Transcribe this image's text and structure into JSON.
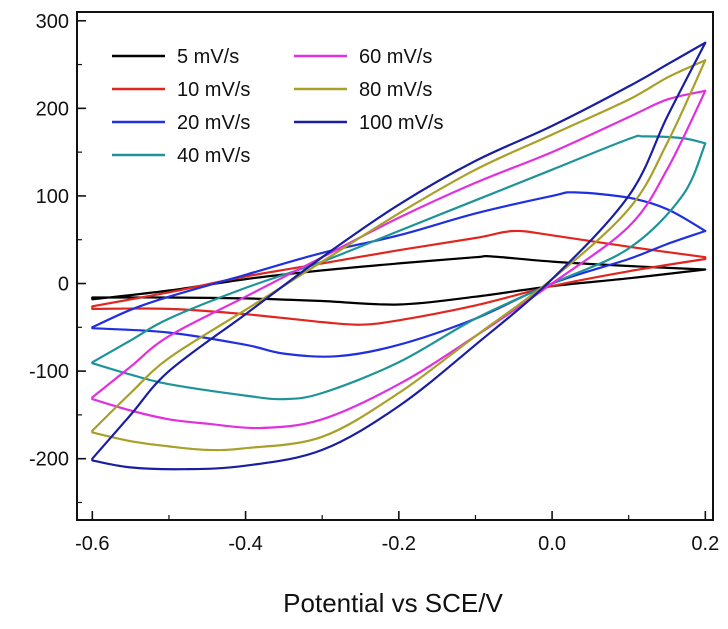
{
  "chart_data": {
    "type": "line",
    "xlabel": "Potential vs SCE/V",
    "ylabel": "",
    "xlim": [
      -0.62,
      0.21
    ],
    "ylim": [
      -270,
      310
    ],
    "x_ticks": [
      -0.6,
      -0.4,
      -0.2,
      0.0,
      0.2
    ],
    "x_tick_labels": [
      "-0.6",
      "-0.4",
      "-0.2",
      "0.0",
      "0.2"
    ],
    "y_ticks": [
      -200,
      -100,
      0,
      100,
      200,
      300
    ],
    "y_tick_labels": [
      "-200",
      "-100",
      "0",
      "100",
      "200",
      "300"
    ],
    "grid": false,
    "legend_position": "top-left",
    "series": [
      {
        "name": "5 mV/s",
        "color": "#000000",
        "forward": [
          [
            -0.6,
            -18
          ],
          [
            -0.5,
            -8
          ],
          [
            -0.4,
            5
          ],
          [
            -0.3,
            15
          ],
          [
            -0.2,
            23
          ],
          [
            -0.1,
            30
          ],
          [
            -0.08,
            31
          ],
          [
            0.0,
            25
          ],
          [
            0.1,
            20
          ],
          [
            0.2,
            16
          ]
        ],
        "reverse": [
          [
            0.2,
            16
          ],
          [
            0.1,
            6
          ],
          [
            0.0,
            -3
          ],
          [
            -0.1,
            -15
          ],
          [
            -0.2,
            -24
          ],
          [
            -0.3,
            -20
          ],
          [
            -0.4,
            -17
          ],
          [
            -0.5,
            -16
          ],
          [
            -0.6,
            -16
          ]
        ]
      },
      {
        "name": "10 mV/s",
        "color": "#e0261e",
        "forward": [
          [
            -0.6,
            -26
          ],
          [
            -0.5,
            -10
          ],
          [
            -0.4,
            8
          ],
          [
            -0.3,
            23
          ],
          [
            -0.2,
            38
          ],
          [
            -0.1,
            52
          ],
          [
            -0.05,
            60
          ],
          [
            0.0,
            55
          ],
          [
            0.1,
            42
          ],
          [
            0.2,
            30
          ]
        ],
        "reverse": [
          [
            0.2,
            28
          ],
          [
            0.1,
            14
          ],
          [
            0.0,
            -3
          ],
          [
            -0.1,
            -25
          ],
          [
            -0.2,
            -42
          ],
          [
            -0.25,
            -47
          ],
          [
            -0.3,
            -44
          ],
          [
            -0.4,
            -35
          ],
          [
            -0.5,
            -29
          ],
          [
            -0.6,
            -29
          ]
        ]
      },
      {
        "name": "20 mV/s",
        "color": "#2030e0",
        "forward": [
          [
            -0.6,
            -50
          ],
          [
            -0.55,
            -30
          ],
          [
            -0.5,
            -15
          ],
          [
            -0.4,
            10
          ],
          [
            -0.3,
            35
          ],
          [
            -0.2,
            55
          ],
          [
            -0.1,
            80
          ],
          [
            0.0,
            100
          ],
          [
            0.03,
            104
          ],
          [
            0.1,
            98
          ],
          [
            0.15,
            85
          ],
          [
            0.2,
            60
          ]
        ],
        "reverse": [
          [
            0.2,
            60
          ],
          [
            0.15,
            45
          ],
          [
            0.1,
            28
          ],
          [
            0.0,
            0
          ],
          [
            -0.1,
            -40
          ],
          [
            -0.2,
            -70
          ],
          [
            -0.28,
            -83
          ],
          [
            -0.35,
            -80
          ],
          [
            -0.4,
            -70
          ],
          [
            -0.5,
            -56
          ],
          [
            -0.6,
            -51
          ]
        ]
      },
      {
        "name": "40 mV/s",
        "color": "#1e9498",
        "forward": [
          [
            -0.6,
            -90
          ],
          [
            -0.55,
            -65
          ],
          [
            -0.5,
            -40
          ],
          [
            -0.4,
            -5
          ],
          [
            -0.3,
            25
          ],
          [
            -0.2,
            60
          ],
          [
            -0.1,
            95
          ],
          [
            0.0,
            130
          ],
          [
            0.1,
            165
          ],
          [
            0.12,
            168
          ],
          [
            0.17,
            166
          ],
          [
            0.2,
            160
          ]
        ],
        "reverse": [
          [
            0.2,
            160
          ],
          [
            0.17,
            100
          ],
          [
            0.1,
            40
          ],
          [
            0.0,
            0
          ],
          [
            -0.1,
            -40
          ],
          [
            -0.2,
            -90
          ],
          [
            -0.3,
            -125
          ],
          [
            -0.35,
            -132
          ],
          [
            -0.4,
            -128
          ],
          [
            -0.5,
            -115
          ],
          [
            -0.55,
            -104
          ],
          [
            -0.6,
            -91
          ]
        ]
      },
      {
        "name": "60 mV/s",
        "color": "#e030e0",
        "forward": [
          [
            -0.6,
            -130
          ],
          [
            -0.55,
            -95
          ],
          [
            -0.5,
            -60
          ],
          [
            -0.4,
            -15
          ],
          [
            -0.3,
            30
          ],
          [
            -0.2,
            75
          ],
          [
            -0.1,
            115
          ],
          [
            0.0,
            150
          ],
          [
            0.1,
            190
          ],
          [
            0.15,
            210
          ],
          [
            0.2,
            220
          ]
        ],
        "reverse": [
          [
            0.2,
            220
          ],
          [
            0.15,
            130
          ],
          [
            0.1,
            65
          ],
          [
            0.0,
            0
          ],
          [
            -0.1,
            -60
          ],
          [
            -0.2,
            -115
          ],
          [
            -0.3,
            -155
          ],
          [
            -0.38,
            -165
          ],
          [
            -0.45,
            -160
          ],
          [
            -0.5,
            -155
          ],
          [
            -0.55,
            -145
          ],
          [
            -0.6,
            -132
          ]
        ]
      },
      {
        "name": "80 mV/s",
        "color": "#a8a028",
        "forward": [
          [
            -0.6,
            -168
          ],
          [
            -0.55,
            -125
          ],
          [
            -0.5,
            -85
          ],
          [
            -0.4,
            -30
          ],
          [
            -0.3,
            25
          ],
          [
            -0.2,
            80
          ],
          [
            -0.1,
            130
          ],
          [
            0.0,
            170
          ],
          [
            0.1,
            210
          ],
          [
            0.15,
            235
          ],
          [
            0.2,
            255
          ]
        ],
        "reverse": [
          [
            0.2,
            255
          ],
          [
            0.15,
            160
          ],
          [
            0.1,
            85
          ],
          [
            0.0,
            5
          ],
          [
            -0.1,
            -60
          ],
          [
            -0.2,
            -125
          ],
          [
            -0.3,
            -175
          ],
          [
            -0.4,
            -188
          ],
          [
            -0.45,
            -190
          ],
          [
            -0.5,
            -186
          ],
          [
            -0.55,
            -180
          ],
          [
            -0.6,
            -170
          ]
        ]
      },
      {
        "name": "100 mV/s",
        "color": "#1a1ea0",
        "forward": [
          [
            -0.6,
            -200
          ],
          [
            -0.55,
            -150
          ],
          [
            -0.5,
            -100
          ],
          [
            -0.4,
            -35
          ],
          [
            -0.3,
            30
          ],
          [
            -0.2,
            90
          ],
          [
            -0.1,
            140
          ],
          [
            0.0,
            180
          ],
          [
            0.1,
            225
          ],
          [
            0.15,
            250
          ],
          [
            0.2,
            275
          ]
        ],
        "reverse": [
          [
            0.2,
            275
          ],
          [
            0.15,
            190
          ],
          [
            0.1,
            100
          ],
          [
            0.0,
            5
          ],
          [
            -0.1,
            -70
          ],
          [
            -0.2,
            -140
          ],
          [
            -0.3,
            -190
          ],
          [
            -0.4,
            -208
          ],
          [
            -0.48,
            -212
          ],
          [
            -0.55,
            -210
          ],
          [
            -0.6,
            -202
          ]
        ]
      }
    ]
  }
}
